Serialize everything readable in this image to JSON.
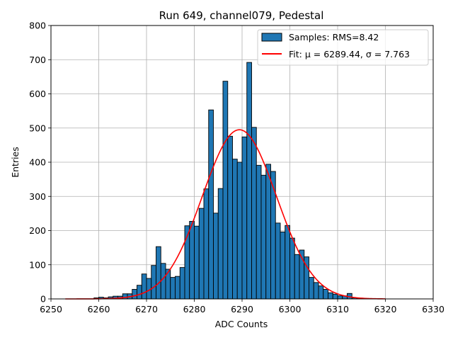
{
  "chart_data": {
    "type": "bar",
    "title": "Run 649, channel079, Pedestal",
    "xlabel": "ADC Counts",
    "ylabel": "Entries",
    "xlim": [
      6250,
      6330
    ],
    "ylim": [
      0,
      800
    ],
    "xticks": [
      "6250",
      "6260",
      "6270",
      "6280",
      "6290",
      "6300",
      "6310",
      "6320",
      "6330"
    ],
    "yticks": [
      "0",
      "100",
      "200",
      "300",
      "400",
      "500",
      "600",
      "700",
      "800"
    ],
    "grid": true,
    "legend_position": "top-right",
    "bin_width": 1,
    "bin_edges_start": 6259,
    "bin_counts": [
      3,
      5,
      3,
      6,
      8,
      8,
      15,
      15,
      28,
      40,
      73,
      60,
      98,
      153,
      104,
      87,
      63,
      66,
      92,
      214,
      227,
      213,
      265,
      322,
      553,
      251,
      323,
      637,
      476,
      409,
      400,
      474,
      692,
      502,
      391,
      362,
      394,
      373,
      222,
      196,
      215,
      178,
      130,
      143,
      123,
      63,
      48,
      38,
      28,
      18,
      14,
      9,
      9,
      16,
      3,
      2
    ],
    "fit": {
      "mu": 6289.44,
      "sigma": 7.763,
      "amplitude": 495,
      "x_range": [
        6253,
        6320
      ]
    },
    "series": [
      {
        "name": "Samples: RMS=8.42",
        "color": "#1f77b4",
        "edge_color": "#000000"
      },
      {
        "name": "Fit: μ = 6289.44, σ = 7.763",
        "color": "#ff0000"
      }
    ]
  }
}
